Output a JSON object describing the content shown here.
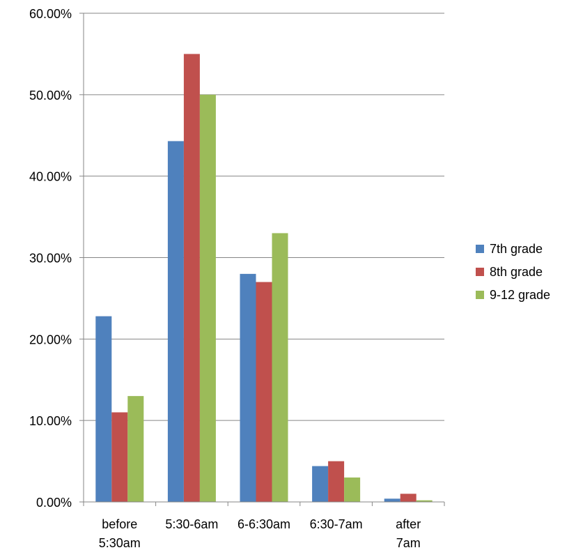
{
  "chart_data": {
    "type": "bar",
    "title": "",
    "xlabel": "",
    "ylabel": "",
    "categories": [
      [
        "before",
        "5:30am"
      ],
      [
        "5:30-6am"
      ],
      [
        "6-6:30am"
      ],
      [
        "6:30-7am"
      ],
      [
        "after",
        "7am"
      ]
    ],
    "series": [
      {
        "name": "7th grade",
        "color": "#4F81BD",
        "values": [
          22.8,
          44.3,
          28.0,
          4.4,
          0.4
        ]
      },
      {
        "name": "8th grade",
        "color": "#C0504D",
        "values": [
          11.0,
          55.0,
          27.0,
          5.0,
          1.0
        ]
      },
      {
        "name": "9-12 grade",
        "color": "#9BBB59",
        "values": [
          13.0,
          50.0,
          33.0,
          3.0,
          0.2
        ]
      }
    ],
    "ylim": [
      0,
      60
    ],
    "yticks": [
      "0.00%",
      "10.00%",
      "20.00%",
      "30.00%",
      "40.00%",
      "50.00%",
      "60.00%"
    ],
    "grid": true,
    "legend_position": "right"
  }
}
